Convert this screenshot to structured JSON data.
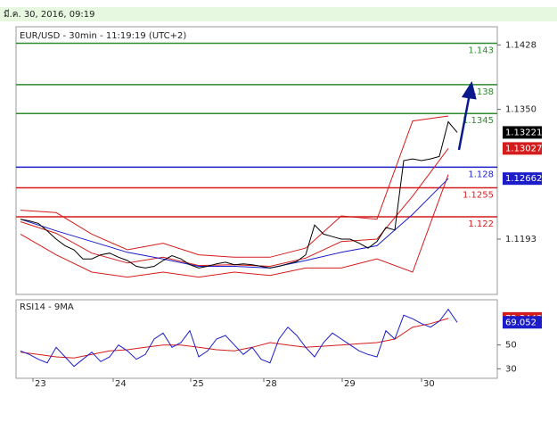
{
  "header": {
    "date": "มี.ค. 30, 2016, 09:19"
  },
  "chart_data": [
    {
      "type": "line",
      "title": "EUR/USD - 30min - 11:19:19 (UTC+2)",
      "xlim": [
        -0.5,
        53.5
      ],
      "ylim": [
        1.1126,
        1.145
      ],
      "yticks": [
        1.1428,
        {
          "value": 1.135,
          "label": "1.1350"
        },
        1.1193
      ],
      "levels": [
        {
          "value": 1.143,
          "color": "#2e8b2e"
        },
        {
          "value": 1.138,
          "color": "#2e8b2e"
        },
        {
          "value": 1.1345,
          "color": "#2e8b2e"
        },
        {
          "value": 1.128,
          "color": "#1c1cc8"
        },
        {
          "value": 1.1255,
          "color": "#d41c1c"
        },
        {
          "value": 1.122,
          "color": "#d41c1c"
        }
      ],
      "series": [
        {
          "color": "#d41c1c",
          "x": [
            0,
            4,
            8,
            12,
            16,
            20,
            24,
            28,
            32,
            36,
            40,
            44,
            48
          ],
          "values": [
            1.1228,
            1.1225,
            1.1199,
            1.118,
            1.1188,
            1.1174,
            1.1171,
            1.1171,
            1.1182,
            1.1221,
            1.1217,
            1.1336,
            1.1342
          ]
        },
        {
          "color": "#d41c1c",
          "x": [
            0,
            4,
            8,
            12,
            16,
            20,
            24,
            28,
            32,
            36,
            40,
            44,
            48
          ],
          "values": [
            1.1199,
            1.1174,
            1.1153,
            1.1147,
            1.1153,
            1.1147,
            1.1153,
            1.1149,
            1.1158,
            1.1158,
            1.1169,
            1.1153,
            1.1271
          ]
        },
        {
          "color": "#d41c1c",
          "label_box": true,
          "x": [
            0,
            4,
            8,
            12,
            16,
            20,
            24,
            28,
            32,
            36,
            40,
            44,
            48
          ],
          "values": [
            1.1214,
            1.12,
            1.1176,
            1.1164,
            1.1171,
            1.1161,
            1.1162,
            1.116,
            1.117,
            1.119,
            1.1193,
            1.1245,
            1.13027
          ]
        },
        {
          "color": "#1c1cc8",
          "label_box": true,
          "x": [
            0,
            4,
            8,
            12,
            16,
            20,
            24,
            28,
            32,
            36,
            40,
            44,
            48
          ],
          "values": [
            1.1217,
            1.1203,
            1.119,
            1.1177,
            1.1169,
            1.116,
            1.116,
            1.1158,
            1.1167,
            1.1177,
            1.1185,
            1.1223,
            1.12662
          ]
        },
        {
          "color": "#000000",
          "label_box": true,
          "x": [
            0,
            1,
            2,
            3,
            4,
            5,
            6,
            7,
            8,
            9,
            10,
            11,
            12,
            13,
            14,
            15,
            16,
            17,
            18,
            19,
            20,
            21,
            22,
            23,
            24,
            25,
            26,
            27,
            28,
            29,
            30,
            31,
            32,
            33,
            34,
            35,
            36,
            37,
            38,
            39,
            40,
            41,
            42,
            43,
            44,
            45,
            46,
            47,
            48,
            49
          ],
          "values": [
            1.1217,
            1.1215,
            1.1212,
            1.1203,
            1.1193,
            1.1185,
            1.118,
            1.1169,
            1.1169,
            1.1174,
            1.1176,
            1.1171,
            1.1167,
            1.116,
            1.1158,
            1.116,
            1.1167,
            1.1173,
            1.1169,
            1.1162,
            1.1158,
            1.116,
            1.1163,
            1.1165,
            1.1162,
            1.1163,
            1.1162,
            1.116,
            1.1158,
            1.116,
            1.1163,
            1.1166,
            1.1174,
            1.121,
            1.1199,
            1.1196,
            1.1193,
            1.1193,
            1.1188,
            1.1182,
            1.119,
            1.1207,
            1.1204,
            1.1288,
            1.129,
            1.1288,
            1.129,
            1.1293,
            1.1335,
            1.13221
          ]
        }
      ]
    },
    {
      "type": "line",
      "title": "RSI14 - 9MA",
      "xlim": [
        -0.5,
        53.5
      ],
      "ylim": [
        22,
        88
      ],
      "yticks": [
        30,
        50
      ],
      "xticks": [
        {
          "value": 1.4,
          "label": "23"
        },
        {
          "value": 10.4,
          "label": "24"
        },
        {
          "value": 19.1,
          "label": "25"
        },
        {
          "value": 27.3,
          "label": "28"
        },
        {
          "value": 36.1,
          "label": "29"
        },
        {
          "value": 45,
          "label": "30"
        }
      ],
      "series": [
        {
          "color": "#d41c1c",
          "label_box": true,
          "x": [
            0,
            2,
            4,
            6,
            8,
            10,
            12,
            14,
            16,
            18,
            20,
            22,
            24,
            26,
            28,
            30,
            32,
            34,
            36,
            38,
            40,
            42,
            44,
            46,
            48
          ],
          "values": [
            44,
            42,
            40,
            39,
            42,
            45,
            46,
            48,
            50,
            50,
            48,
            46,
            45,
            48,
            52,
            50,
            48,
            49,
            50,
            51,
            52,
            55,
            65,
            68,
            72.3443
          ]
        },
        {
          "color": "#1c1cc8",
          "label_box": true,
          "x": [
            0,
            1,
            2,
            3,
            4,
            5,
            6,
            7,
            8,
            9,
            10,
            11,
            12,
            13,
            14,
            15,
            16,
            17,
            18,
            19,
            20,
            21,
            22,
            23,
            24,
            25,
            26,
            27,
            28,
            29,
            30,
            31,
            32,
            33,
            34,
            35,
            36,
            37,
            38,
            39,
            40,
            41,
            42,
            43,
            44,
            45,
            46,
            47,
            48,
            49
          ],
          "values": [
            45,
            42,
            38,
            35,
            48,
            40,
            32,
            38,
            44,
            36,
            40,
            50,
            45,
            38,
            42,
            55,
            60,
            48,
            52,
            62,
            40,
            45,
            55,
            58,
            50,
            42,
            48,
            38,
            35,
            55,
            65,
            58,
            48,
            40,
            52,
            60,
            55,
            50,
            45,
            42,
            40,
            62,
            55,
            75,
            72,
            68,
            65,
            70,
            80,
            69.052
          ]
        }
      ]
    }
  ]
}
